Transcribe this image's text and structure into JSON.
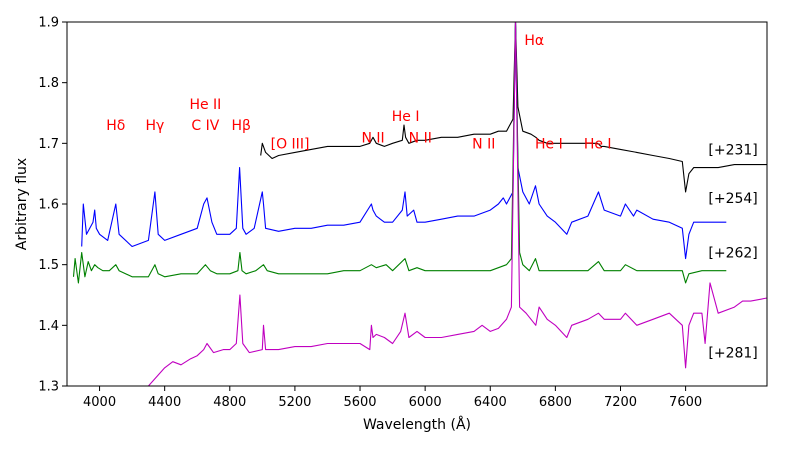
{
  "chart_data": {
    "type": "line",
    "xlabel": "Wavelength (Å)",
    "ylabel": "Arbitrary flux",
    "xlim": [
      3800,
      8100
    ],
    "ylim": [
      1.3,
      1.9
    ],
    "xticks": [
      4000,
      4400,
      4800,
      5200,
      5600,
      6000,
      6400,
      6800,
      7200,
      7600
    ],
    "xtick_labels": [
      "4000",
      "4400",
      "4800",
      "5200",
      "5600",
      "6000",
      "6400",
      "6800",
      "7200",
      "7600"
    ],
    "yticks": [
      1.3,
      1.4,
      1.5,
      1.6,
      1.7,
      1.8,
      1.9
    ],
    "ytick_labels": [
      "1.3",
      "1.4",
      "1.5",
      "1.6",
      "1.7",
      "1.8",
      "1.9"
    ],
    "grid": false,
    "colors": {
      "black": "#000000",
      "blue": "#0000ff",
      "green": "#008000",
      "magenta": "#c000c0",
      "annotation": "#ff0000"
    },
    "series": [
      {
        "name": "[+231]",
        "color": "#000000",
        "x": [
          4990,
          5000,
          5020,
          5060,
          5100,
          5200,
          5300,
          5400,
          5500,
          5600,
          5660,
          5680,
          5700,
          5750,
          5800,
          5860,
          5870,
          5880,
          5900,
          5950,
          6000,
          6100,
          6200,
          6300,
          6400,
          6450,
          6500,
          6540,
          6555,
          6570,
          6600,
          6650,
          6680,
          6700,
          6750,
          6800,
          6900,
          7000,
          7060,
          7080,
          7100,
          7200,
          7300,
          7400,
          7500,
          7580,
          7600,
          7620,
          7650,
          7700,
          7800,
          7900,
          8000,
          8100
        ],
        "y": [
          1.68,
          1.7,
          1.685,
          1.675,
          1.68,
          1.685,
          1.69,
          1.695,
          1.695,
          1.695,
          1.7,
          1.71,
          1.7,
          1.695,
          1.7,
          1.705,
          1.73,
          1.71,
          1.7,
          1.705,
          1.705,
          1.71,
          1.71,
          1.715,
          1.715,
          1.72,
          1.72,
          1.74,
          1.9,
          1.76,
          1.72,
          1.715,
          1.71,
          1.705,
          1.7,
          1.7,
          1.7,
          1.7,
          1.7,
          1.695,
          1.695,
          1.69,
          1.685,
          1.68,
          1.675,
          1.67,
          1.62,
          1.65,
          1.66,
          1.66,
          1.66,
          1.665,
          1.665,
          1.665
        ]
      },
      {
        "name": "[+254]",
        "color": "#0000ff",
        "x": [
          3890,
          3900,
          3920,
          3960,
          3970,
          3980,
          4000,
          4050,
          4100,
          4120,
          4200,
          4300,
          4340,
          4360,
          4400,
          4500,
          4600,
          4640,
          4660,
          4690,
          4720,
          4800,
          4840,
          4860,
          4880,
          4900,
          4950,
          5000,
          5007,
          5020,
          5100,
          5200,
          5300,
          5400,
          5500,
          5600,
          5670,
          5680,
          5700,
          5750,
          5800,
          5860,
          5876,
          5890,
          5930,
          5950,
          6000,
          6100,
          6200,
          6300,
          6400,
          6450,
          6480,
          6500,
          6540,
          6555,
          6570,
          6600,
          6640,
          6678,
          6700,
          6750,
          6800,
          6870,
          6900,
          7000,
          7065,
          7100,
          7200,
          7230,
          7280,
          7300,
          7400,
          7500,
          7580,
          7600,
          7620,
          7650,
          7700,
          7800,
          7850
        ],
        "y": [
          1.53,
          1.6,
          1.55,
          1.57,
          1.59,
          1.56,
          1.55,
          1.54,
          1.6,
          1.55,
          1.53,
          1.54,
          1.62,
          1.55,
          1.54,
          1.55,
          1.56,
          1.6,
          1.61,
          1.57,
          1.55,
          1.55,
          1.56,
          1.66,
          1.56,
          1.55,
          1.56,
          1.62,
          1.6,
          1.56,
          1.555,
          1.56,
          1.56,
          1.565,
          1.565,
          1.57,
          1.6,
          1.59,
          1.58,
          1.57,
          1.57,
          1.59,
          1.62,
          1.58,
          1.59,
          1.57,
          1.57,
          1.575,
          1.58,
          1.58,
          1.59,
          1.6,
          1.61,
          1.6,
          1.62,
          1.9,
          1.66,
          1.62,
          1.6,
          1.63,
          1.6,
          1.58,
          1.57,
          1.55,
          1.57,
          1.58,
          1.62,
          1.59,
          1.58,
          1.6,
          1.58,
          1.59,
          1.575,
          1.57,
          1.56,
          1.51,
          1.55,
          1.57,
          1.57,
          1.57,
          1.57
        ]
      },
      {
        "name": "[+262]",
        "color": "#008000",
        "x": [
          3840,
          3850,
          3870,
          3890,
          3910,
          3930,
          3950,
          3970,
          3990,
          4020,
          4060,
          4100,
          4120,
          4200,
          4300,
          4340,
          4360,
          4400,
          4500,
          4600,
          4650,
          4680,
          4720,
          4800,
          4850,
          4862,
          4875,
          4900,
          4960,
          5007,
          5030,
          5100,
          5200,
          5300,
          5400,
          5500,
          5600,
          5670,
          5700,
          5760,
          5800,
          5876,
          5900,
          5950,
          6000,
          6100,
          6200,
          6300,
          6400,
          6500,
          6530,
          6555,
          6580,
          6600,
          6640,
          6678,
          6700,
          6800,
          6900,
          7000,
          7065,
          7100,
          7200,
          7230,
          7300,
          7400,
          7500,
          7580,
          7600,
          7620,
          7700,
          7800,
          7850
        ],
        "y": [
          1.48,
          1.51,
          1.47,
          1.52,
          1.48,
          1.505,
          1.49,
          1.5,
          1.495,
          1.49,
          1.49,
          1.5,
          1.49,
          1.48,
          1.48,
          1.5,
          1.485,
          1.48,
          1.485,
          1.485,
          1.5,
          1.49,
          1.485,
          1.485,
          1.49,
          1.52,
          1.49,
          1.485,
          1.49,
          1.5,
          1.49,
          1.485,
          1.485,
          1.485,
          1.485,
          1.49,
          1.49,
          1.5,
          1.495,
          1.5,
          1.49,
          1.51,
          1.49,
          1.495,
          1.49,
          1.49,
          1.49,
          1.49,
          1.49,
          1.5,
          1.51,
          1.9,
          1.52,
          1.5,
          1.49,
          1.51,
          1.49,
          1.49,
          1.49,
          1.49,
          1.505,
          1.49,
          1.49,
          1.5,
          1.49,
          1.49,
          1.49,
          1.49,
          1.47,
          1.485,
          1.49,
          1.49,
          1.49
        ]
      },
      {
        "name": "[+281]",
        "color": "#c000c0",
        "x": [
          4300,
          4400,
          4450,
          4500,
          4560,
          4600,
          4640,
          4660,
          4700,
          4760,
          4800,
          4840,
          4862,
          4880,
          4920,
          5000,
          5007,
          5020,
          5100,
          5200,
          5300,
          5400,
          5500,
          5600,
          5660,
          5670,
          5680,
          5700,
          5750,
          5800,
          5850,
          5876,
          5900,
          5950,
          6000,
          6100,
          6200,
          6300,
          6350,
          6400,
          6450,
          6500,
          6530,
          6555,
          6580,
          6620,
          6680,
          6700,
          6750,
          6800,
          6870,
          6900,
          7000,
          7065,
          7100,
          7200,
          7230,
          7300,
          7400,
          7500,
          7580,
          7600,
          7620,
          7650,
          7700,
          7720,
          7750,
          7800,
          7900,
          7950,
          8000,
          8100
        ],
        "y": [
          1.3,
          1.33,
          1.34,
          1.335,
          1.345,
          1.35,
          1.36,
          1.37,
          1.355,
          1.36,
          1.36,
          1.37,
          1.45,
          1.37,
          1.355,
          1.36,
          1.4,
          1.36,
          1.36,
          1.365,
          1.365,
          1.37,
          1.37,
          1.37,
          1.36,
          1.4,
          1.38,
          1.385,
          1.38,
          1.37,
          1.39,
          1.42,
          1.38,
          1.39,
          1.38,
          1.38,
          1.385,
          1.39,
          1.4,
          1.39,
          1.395,
          1.41,
          1.43,
          1.9,
          1.43,
          1.42,
          1.4,
          1.43,
          1.41,
          1.4,
          1.38,
          1.4,
          1.41,
          1.42,
          1.41,
          1.41,
          1.42,
          1.4,
          1.41,
          1.42,
          1.4,
          1.33,
          1.4,
          1.42,
          1.42,
          1.37,
          1.47,
          1.42,
          1.43,
          1.44,
          1.44,
          1.445
        ]
      }
    ],
    "series_labels": [
      {
        "text": "[+231]",
        "x": 7740,
        "y": 1.69
      },
      {
        "text": "[+254]",
        "x": 7740,
        "y": 1.61
      },
      {
        "text": "[+262]",
        "x": 7740,
        "y": 1.52
      },
      {
        "text": "[+281]",
        "x": 7740,
        "y": 1.355
      }
    ],
    "annotations": [
      {
        "text": "Hδ",
        "x": 4100,
        "y": 1.73
      },
      {
        "text": "Hγ",
        "x": 4340,
        "y": 1.73
      },
      {
        "text": "He II",
        "x": 4650,
        "y": 1.765
      },
      {
        "text": "C IV",
        "x": 4650,
        "y": 1.73
      },
      {
        "text": "Hβ",
        "x": 4870,
        "y": 1.73
      },
      {
        "text": "[O III]",
        "x": 5170,
        "y": 1.7
      },
      {
        "text": "N II",
        "x": 5680,
        "y": 1.71
      },
      {
        "text": "He I",
        "x": 5880,
        "y": 1.745
      },
      {
        "text": "N II",
        "x": 5970,
        "y": 1.71
      },
      {
        "text": "N II",
        "x": 6360,
        "y": 1.7
      },
      {
        "text": "Hα",
        "x": 6670,
        "y": 1.87
      },
      {
        "text": "He I",
        "x": 6760,
        "y": 1.7
      },
      {
        "text": "He I",
        "x": 7060,
        "y": 1.7
      }
    ]
  }
}
